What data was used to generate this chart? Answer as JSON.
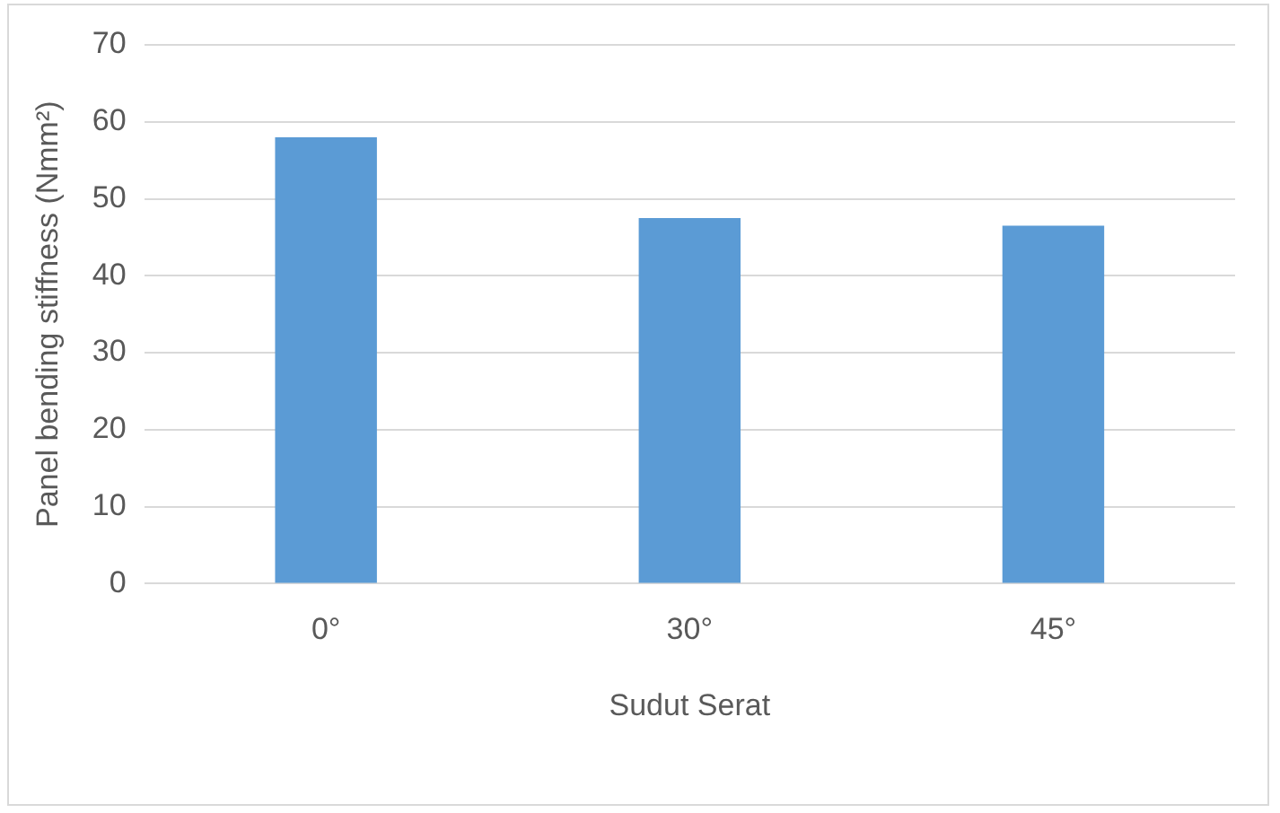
{
  "chart_data": {
    "type": "bar",
    "xlabel": "Sudut Serat",
    "ylabel": "Panel bending stiffness (Nmm²)",
    "categories": [
      "0°",
      "30°",
      "45°"
    ],
    "values": [
      58,
      47.5,
      46.5
    ],
    "color": "#5b9bd5",
    "ylim": [
      0,
      70
    ],
    "yticks": [
      0,
      10,
      20,
      30,
      40,
      50,
      60,
      70
    ],
    "grid": "y",
    "legend": false
  }
}
